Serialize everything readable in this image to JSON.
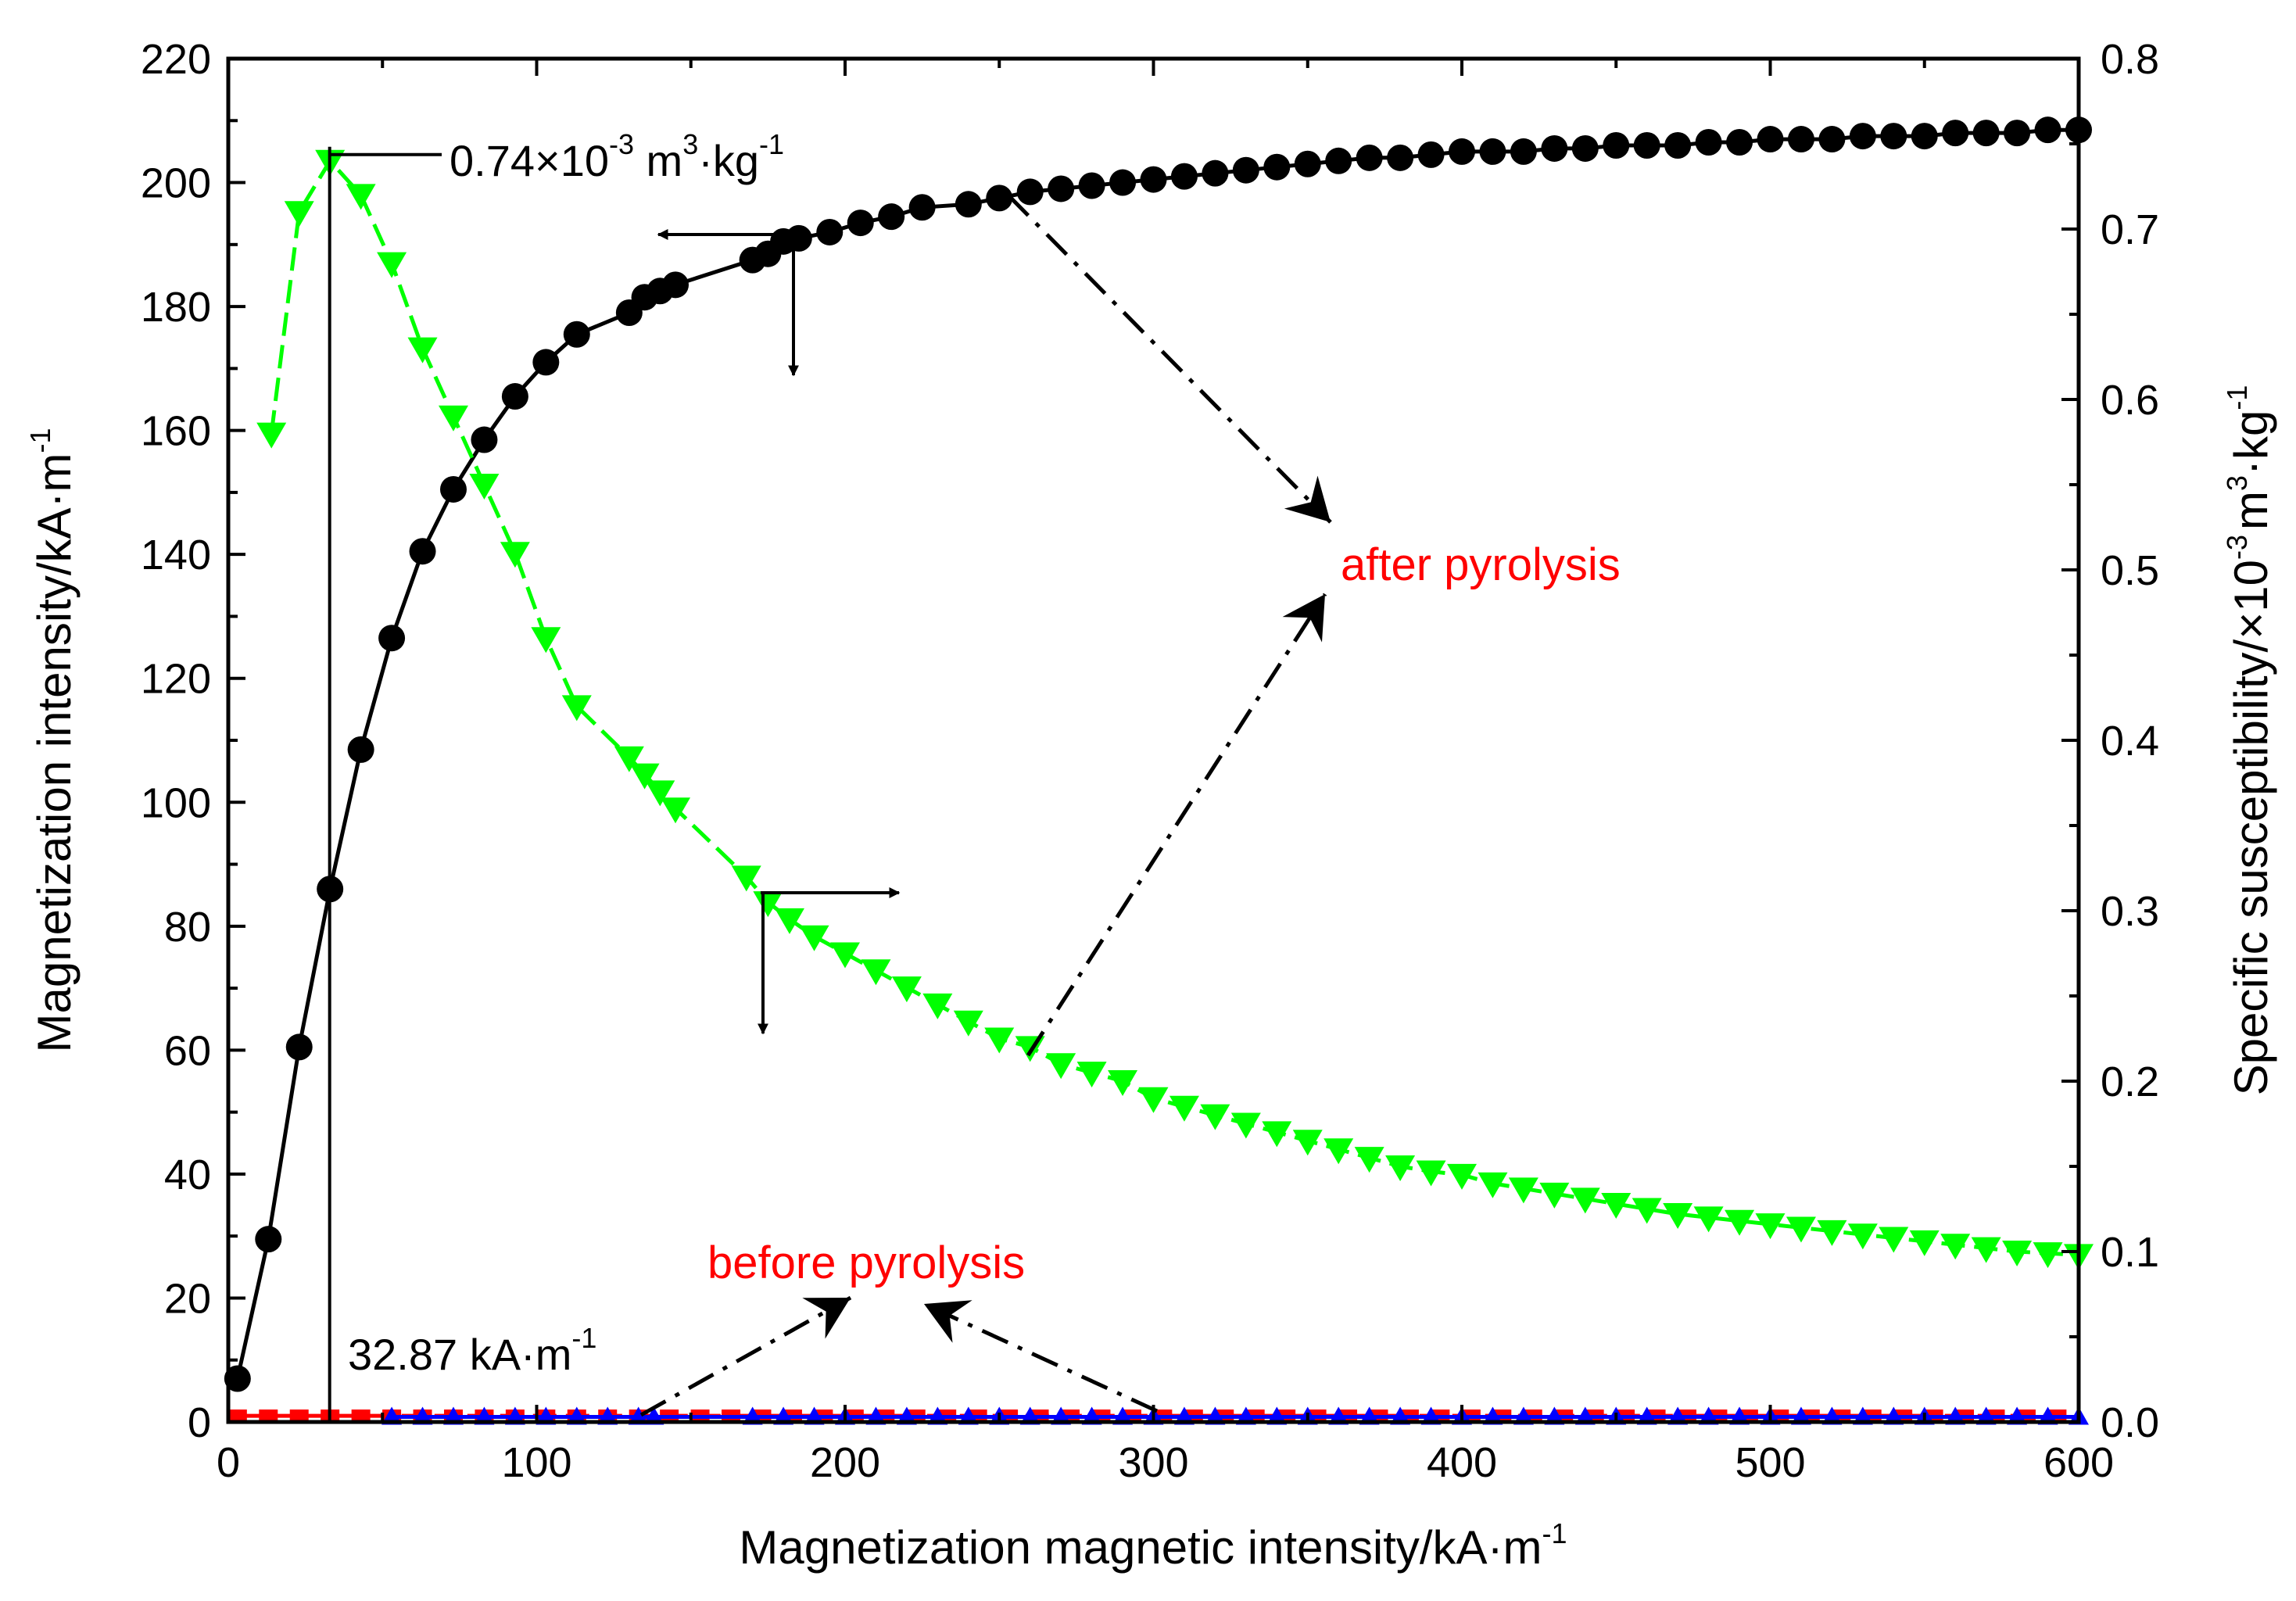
{
  "chart_data": {
    "type": "scatter",
    "xlabel": "Magnetization magnetic intensity/kA·m",
    "xlabel_sup": "-1",
    "ylabel": "Magnetization intensity/kA·m",
    "ylabel_sup": "-1",
    "y2label_parts": [
      "Specific susceptibility/×10",
      "-3",
      "m",
      "3",
      "·kg",
      "-1"
    ],
    "xlim": [
      0,
      600
    ],
    "ylim": [
      0,
      220
    ],
    "y2lim": [
      0,
      0.8
    ],
    "xticks": [
      0,
      100,
      200,
      300,
      400,
      500,
      600
    ],
    "yticks": [
      0,
      20,
      40,
      60,
      80,
      100,
      120,
      140,
      160,
      180,
      200,
      220
    ],
    "y2ticks": [
      "0.0",
      "0.1",
      "0.2",
      "0.3",
      "0.4",
      "0.5",
      "0.6",
      "0.7",
      "0.8"
    ],
    "series": [
      {
        "name": "after pyrolysis magnetization",
        "axis": "left",
        "marker": "circle",
        "color": "#000000",
        "line_style": "solid",
        "x": [
          3,
          13,
          23,
          33,
          43,
          53,
          63,
          73,
          83,
          93,
          103,
          113,
          130,
          135,
          140,
          145,
          170,
          175,
          180,
          185,
          195,
          205,
          215,
          225,
          240,
          250,
          260,
          270,
          280,
          290,
          300,
          310,
          320,
          330,
          340,
          350,
          360,
          370,
          380,
          390,
          400,
          410,
          420,
          430,
          440,
          450,
          460,
          470,
          480,
          490,
          500,
          510,
          520,
          530,
          540,
          550,
          560,
          570,
          580,
          590,
          600
        ],
        "y": [
          7,
          29.5,
          60.5,
          86,
          108.5,
          126.5,
          140.5,
          150.5,
          158.5,
          165.5,
          171,
          175.5,
          179,
          181.5,
          182.5,
          183.5,
          187.5,
          188.5,
          190.5,
          191,
          192,
          193.5,
          194.5,
          196,
          196.5,
          197.5,
          198.5,
          199,
          199.5,
          200,
          200.5,
          201,
          201.5,
          202,
          202.5,
          203,
          203.5,
          204,
          204,
          204.5,
          205,
          205,
          205,
          205.5,
          205.5,
          206,
          206,
          206,
          206.5,
          206.5,
          207,
          207,
          207,
          207.5,
          207.5,
          207.5,
          208,
          208,
          208,
          208.5,
          208.5
        ]
      },
      {
        "name": "after pyrolysis susceptibility",
        "axis": "right",
        "marker": "triangle-down",
        "color": "#00ff00",
        "line_style": "dashed",
        "x": [
          14,
          23,
          33,
          43,
          53,
          63,
          73,
          83,
          93,
          103,
          113,
          130,
          135,
          140,
          145,
          168,
          175,
          182,
          190,
          200,
          210,
          220,
          230,
          240,
          250,
          260,
          270,
          280,
          290,
          300,
          310,
          320,
          330,
          340,
          350,
          360,
          370,
          380,
          390,
          400,
          410,
          420,
          430,
          440,
          450,
          460,
          470,
          480,
          490,
          500,
          510,
          520,
          530,
          540,
          550,
          560,
          570,
          580,
          590,
          600
        ],
        "y": [
          0.58,
          0.71,
          0.74,
          0.72,
          0.68,
          0.63,
          0.59,
          0.55,
          0.51,
          0.46,
          0.42,
          0.39,
          0.38,
          0.37,
          0.36,
          0.32,
          0.305,
          0.295,
          0.285,
          0.275,
          0.265,
          0.255,
          0.245,
          0.235,
          0.225,
          0.22,
          0.21,
          0.205,
          0.2,
          0.19,
          0.185,
          0.18,
          0.175,
          0.17,
          0.165,
          0.16,
          0.155,
          0.15,
          0.147,
          0.145,
          0.14,
          0.137,
          0.134,
          0.131,
          0.128,
          0.125,
          0.122,
          0.12,
          0.118,
          0.116,
          0.114,
          0.112,
          0.11,
          0.108,
          0.106,
          0.104,
          0.102,
          0.1,
          0.099,
          0.098
        ]
      },
      {
        "name": "before pyrolysis magnetization",
        "axis": "left",
        "marker": "square",
        "color": "#ff0000",
        "line_style": "dashed",
        "x": [
          3,
          13,
          23,
          33,
          43,
          53,
          63,
          73,
          83,
          93,
          103,
          113,
          123,
          133,
          143,
          153,
          163,
          173,
          183,
          193,
          203,
          213,
          223,
          233,
          243,
          253,
          263,
          273,
          283,
          293,
          303,
          313,
          323,
          333,
          343,
          353,
          363,
          373,
          383,
          393,
          403,
          413,
          423,
          433,
          443,
          453,
          463,
          473,
          483,
          493,
          503,
          513,
          523,
          533,
          543,
          553,
          563,
          573,
          583,
          593
        ],
        "y": [
          1,
          1,
          1,
          1,
          1,
          1,
          1,
          1,
          1,
          1,
          1,
          1,
          1,
          1,
          1,
          1,
          1,
          1,
          1,
          1,
          1,
          1,
          1,
          1,
          1,
          1,
          1,
          1,
          1,
          1,
          1,
          1,
          1,
          1,
          1,
          1,
          1,
          1,
          1,
          1,
          1,
          1,
          1,
          1,
          1,
          1,
          1,
          1,
          1,
          1,
          1,
          1,
          1,
          1,
          1,
          1,
          1,
          1,
          1,
          1
        ]
      },
      {
        "name": "before pyrolysis susceptibility",
        "axis": "right",
        "marker": "triangle-up",
        "color": "#0000ff",
        "line_style": "solid",
        "x": [
          53,
          63,
          73,
          83,
          93,
          103,
          113,
          123,
          133,
          138,
          170,
          180,
          190,
          200,
          210,
          220,
          230,
          240,
          250,
          260,
          270,
          280,
          290,
          300,
          310,
          320,
          330,
          340,
          350,
          360,
          370,
          380,
          390,
          400,
          410,
          420,
          430,
          440,
          450,
          460,
          470,
          480,
          490,
          500,
          510,
          520,
          530,
          540,
          550,
          560,
          570,
          580,
          590,
          600
        ],
        "y": [
          0.003,
          0.003,
          0.003,
          0.003,
          0.003,
          0.003,
          0.003,
          0.003,
          0.003,
          0.003,
          0.003,
          0.003,
          0.003,
          0.003,
          0.003,
          0.003,
          0.003,
          0.003,
          0.003,
          0.003,
          0.003,
          0.003,
          0.003,
          0.003,
          0.003,
          0.003,
          0.003,
          0.003,
          0.003,
          0.003,
          0.003,
          0.003,
          0.003,
          0.003,
          0.003,
          0.003,
          0.003,
          0.003,
          0.003,
          0.003,
          0.003,
          0.003,
          0.003,
          0.003,
          0.003,
          0.003,
          0.003,
          0.003,
          0.003,
          0.003,
          0.003,
          0.003,
          0.003,
          0.003
        ]
      }
    ],
    "annotations": {
      "peak_parts": [
        "0.74×10",
        "-3",
        " m",
        "3",
        "·kg",
        "-1"
      ],
      "peak_x": 33,
      "peak_y2": 0.74,
      "field_label": "32.87 kA·m",
      "field_label_sup": "-1",
      "field_x": 32.87,
      "after_label": "after pyrolysis",
      "before_label": "before pyrolysis"
    }
  }
}
